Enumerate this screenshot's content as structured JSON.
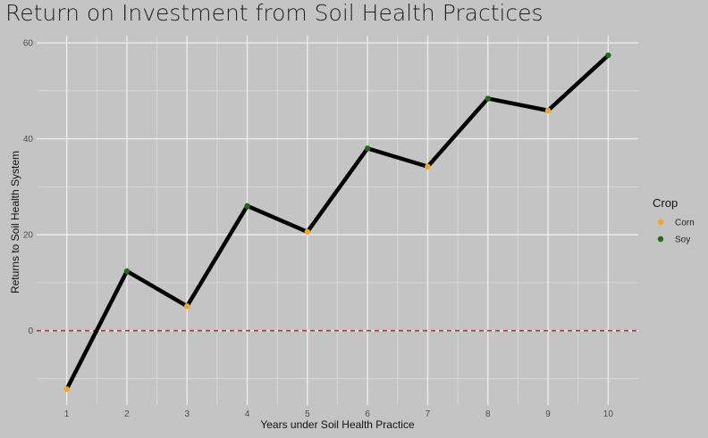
{
  "chart_data": {
    "type": "line",
    "title": "Return on Investment from Soil Health Practices",
    "xlabel": "Years under Soil Health Practice",
    "ylabel": "Returns to Soil Health System",
    "x": [
      1,
      2,
      3,
      4,
      5,
      6,
      7,
      8,
      9,
      10
    ],
    "y": [
      -12.2,
      12.4,
      5.1,
      26.0,
      20.6,
      38.0,
      34.2,
      48.4,
      45.9,
      57.4
    ],
    "crop": [
      "Corn",
      "Soy",
      "Corn",
      "Soy",
      "Corn",
      "Soy",
      "Corn",
      "Soy",
      "Corn",
      "Soy"
    ],
    "xticks": [
      "1",
      "2",
      "3",
      "4",
      "5",
      "6",
      "7",
      "8",
      "9",
      "10"
    ],
    "yticks": [
      0,
      20,
      40,
      60
    ],
    "xlim": [
      0.5,
      10.5
    ],
    "ylim": [
      -15.5,
      61.5
    ],
    "reference_line": {
      "y": 0,
      "style": "dashed",
      "color": "#b03a2e"
    },
    "legend": {
      "title": "Crop",
      "placement": "right",
      "entries": [
        {
          "label": "Corn",
          "color": "#f5a623"
        },
        {
          "label": "Soy",
          "color": "#1e6b14"
        }
      ]
    },
    "line_color": "#000000",
    "grid": true
  }
}
